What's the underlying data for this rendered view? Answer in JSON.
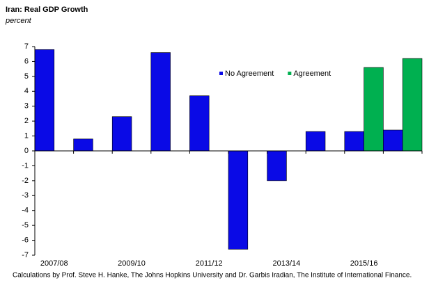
{
  "chart_data": {
    "type": "bar",
    "title": "Iran: Real GDP Growth",
    "subtitle": "percent",
    "categories": [
      "2007/08",
      null,
      "2009/10",
      null,
      "2011/12",
      null,
      "2013/14",
      null,
      "2015/16",
      null
    ],
    "series": [
      {
        "name": "No Agreement",
        "color": "#0a0ae6",
        "values": [
          6.8,
          0.8,
          2.3,
          6.6,
          3.7,
          -6.6,
          -2.0,
          1.3,
          1.3,
          1.4
        ]
      },
      {
        "name": "Agreement",
        "color": "#00b050",
        "values": [
          null,
          null,
          null,
          null,
          null,
          null,
          null,
          null,
          5.6,
          6.2
        ]
      }
    ],
    "ylim": [
      -7,
      7
    ],
    "yticks": [
      -7,
      -6,
      -5,
      -4,
      -3,
      -2,
      -1,
      0,
      1,
      2,
      3,
      4,
      5,
      6,
      7
    ],
    "grid": false,
    "legend": "top",
    "source": "Calculations by Prof. Steve H. Hanke, The Johns Hopkins University and Dr. Garbis Iradian, The Institute of International Finance."
  }
}
